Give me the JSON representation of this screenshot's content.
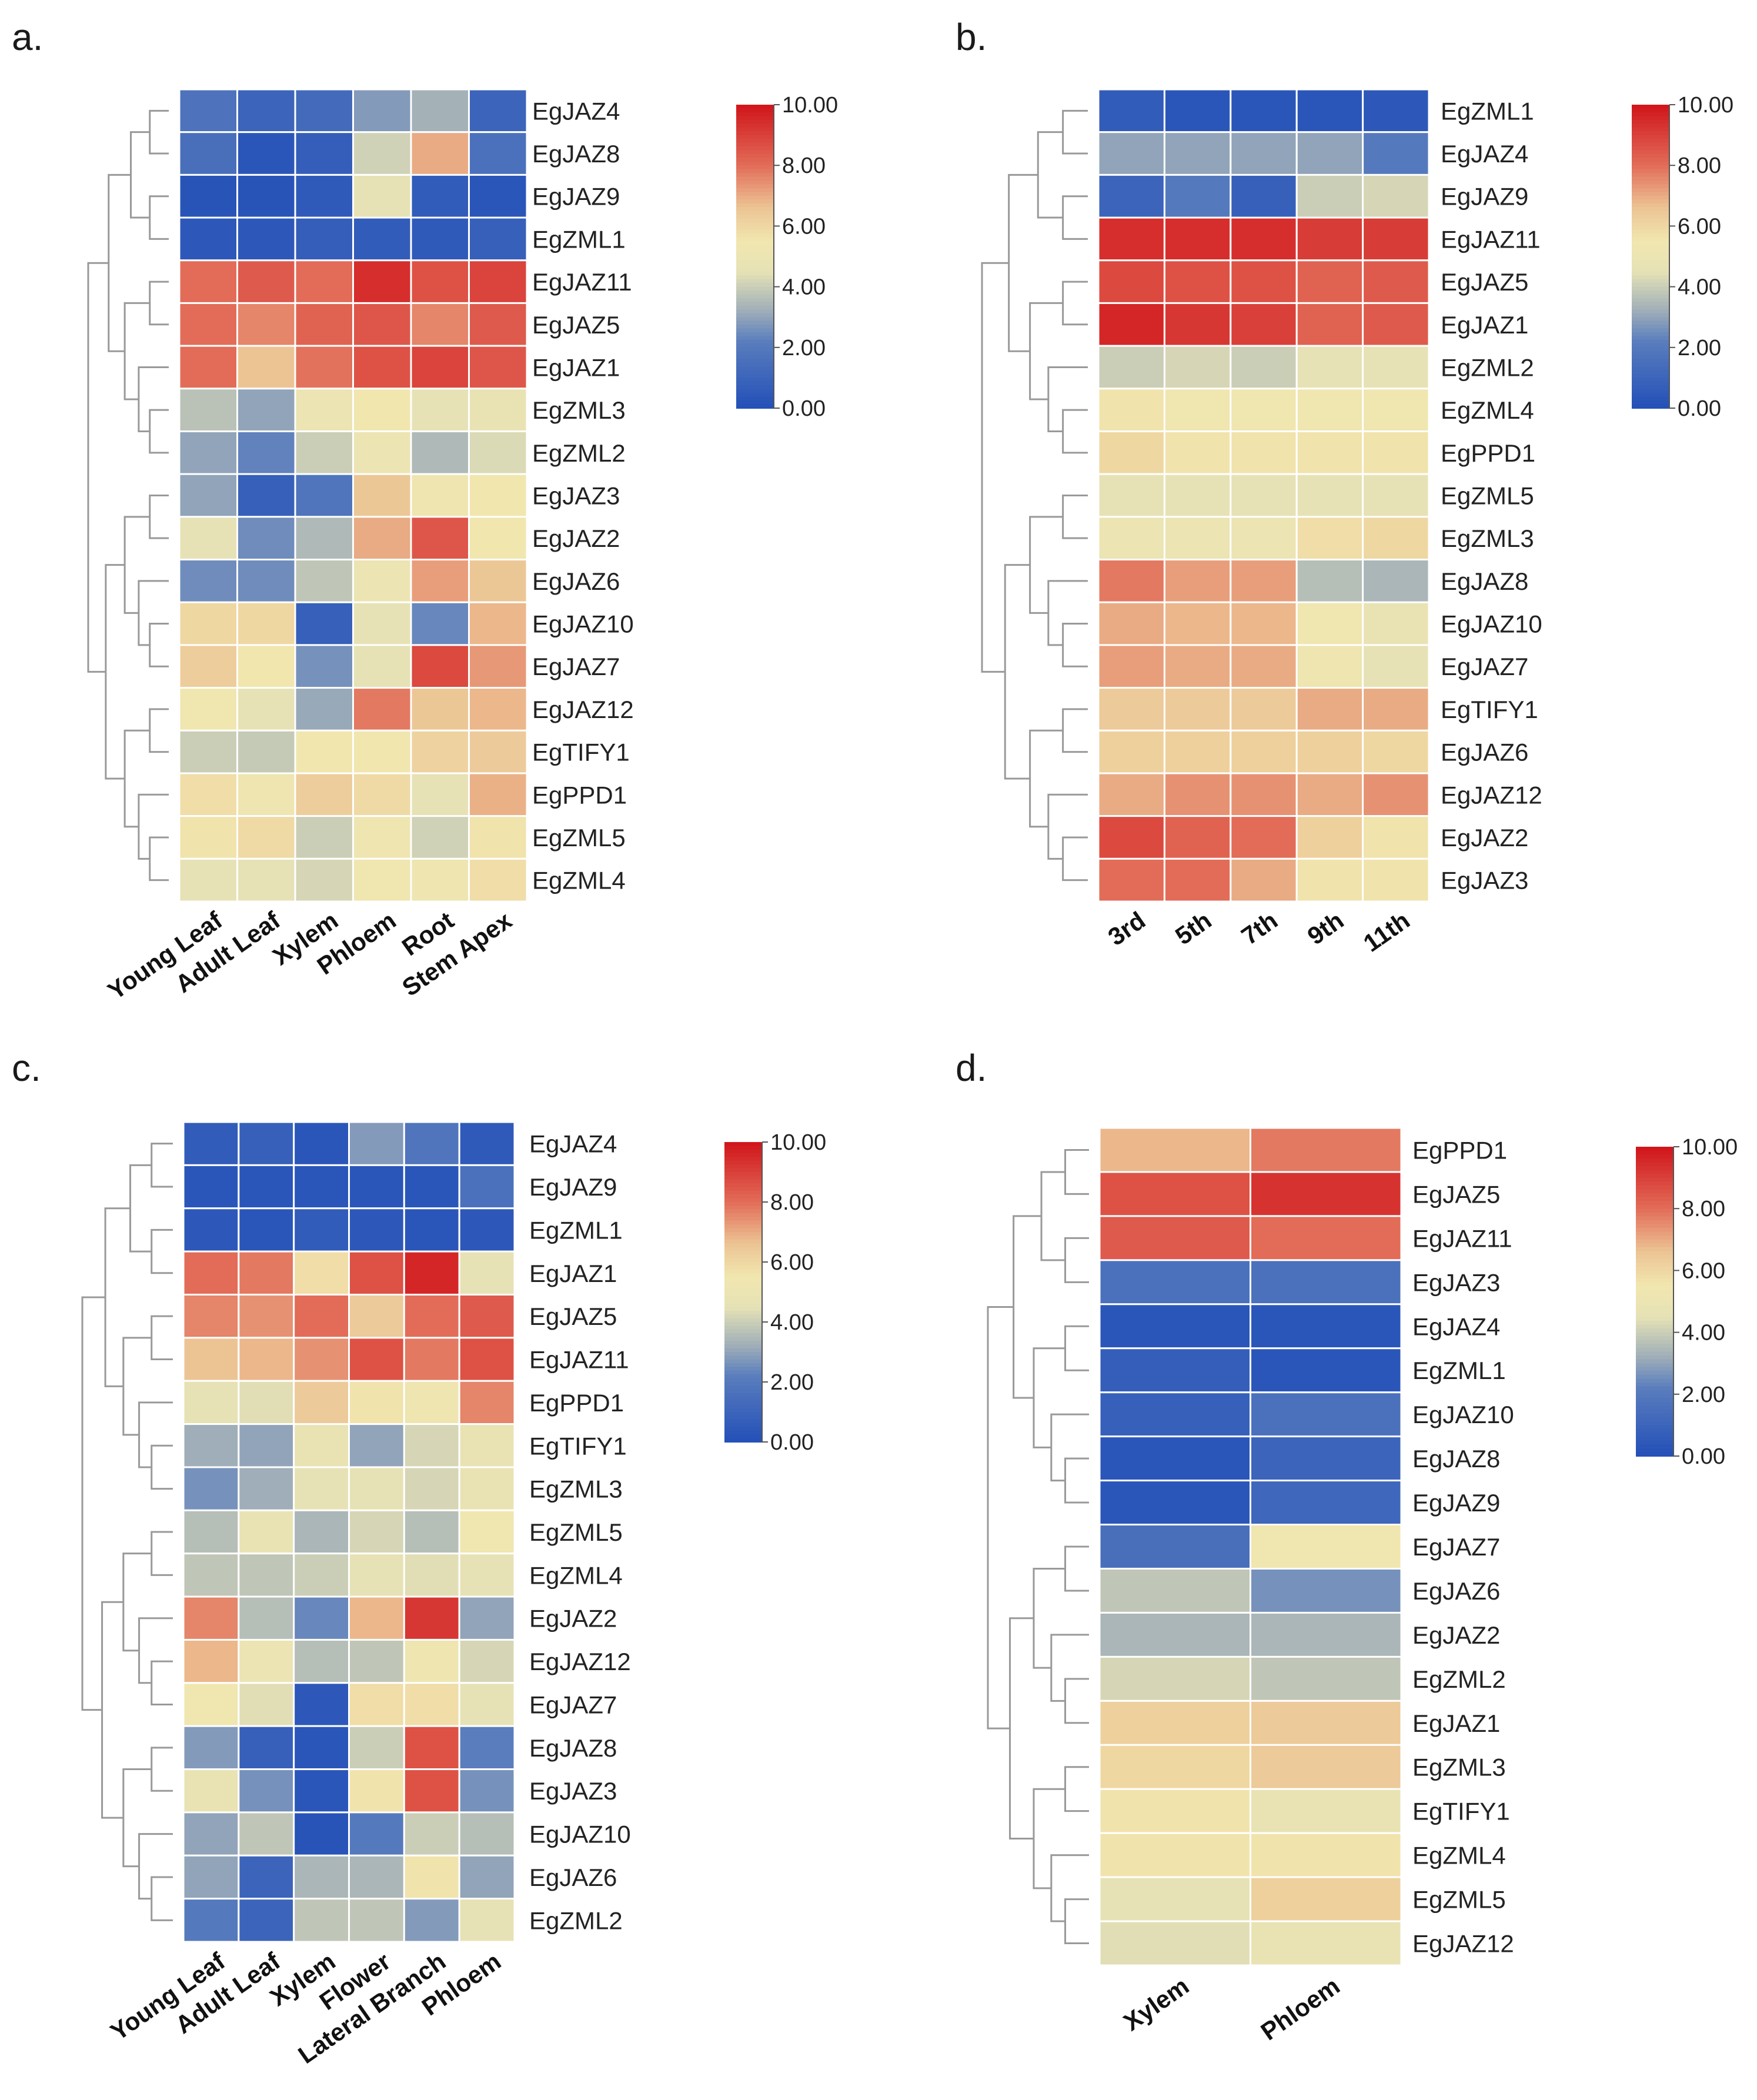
{
  "colors": {
    "low": "#2350b8",
    "mid": "#f1e6ae",
    "high": "#d0141a",
    "dendrogram": "#999999",
    "grid": "#ffffff"
  },
  "chart_data": [
    {
      "type": "heatmap",
      "panel_label": "a.",
      "rows": [
        "EgJAZ4",
        "EgJAZ8",
        "EgJAZ9",
        "EgZML1",
        "EgJAZ11",
        "EgJAZ5",
        "EgJAZ1",
        "EgZML3",
        "EgZML2",
        "EgJAZ3",
        "EgJAZ2",
        "EgJAZ6",
        "EgJAZ10",
        "EgJAZ7",
        "EgJAZ12",
        "EgTIFY1",
        "EgPPD1",
        "EgZML5",
        "EgZML4"
      ],
      "columns": [
        "Young Leaf",
        "Adult Leaf",
        "Xylem",
        "Phloem",
        "Root",
        "Stem Apex"
      ],
      "values": [
        [
          1.7,
          1.0,
          1.3,
          2.8,
          3.3,
          1.0
        ],
        [
          1.5,
          0.3,
          0.7,
          4.1,
          7.0,
          1.6
        ],
        [
          0.2,
          0.2,
          0.5,
          4.6,
          0.6,
          0.3
        ],
        [
          0.4,
          0.4,
          0.7,
          0.6,
          0.5,
          0.8
        ],
        [
          8.0,
          8.4,
          8.0,
          9.4,
          8.6,
          8.9
        ],
        [
          8.0,
          7.6,
          8.2,
          8.5,
          7.6,
          8.4
        ],
        [
          8.0,
          6.6,
          7.9,
          8.6,
          8.9,
          8.5
        ],
        [
          3.7,
          3.0,
          5.0,
          5.5,
          4.5,
          4.8
        ],
        [
          3.0,
          2.3,
          4.0,
          5.0,
          3.5,
          4.3
        ],
        [
          3.0,
          0.8,
          1.8,
          6.5,
          5.3,
          5.5
        ],
        [
          4.5,
          2.5,
          3.5,
          7.0,
          8.5,
          5.5
        ],
        [
          2.5,
          2.5,
          3.8,
          5.0,
          7.2,
          6.5
        ],
        [
          6.0,
          6.0,
          0.8,
          4.6,
          2.4,
          6.8
        ],
        [
          6.3,
          5.5,
          2.6,
          4.5,
          8.8,
          7.3
        ],
        [
          5.4,
          4.6,
          3.1,
          7.8,
          6.5,
          6.8
        ],
        [
          4.0,
          3.9,
          5.5,
          5.5,
          6.1,
          6.4
        ],
        [
          5.8,
          5.2,
          6.3,
          5.9,
          4.5,
          6.9
        ],
        [
          5.6,
          5.9,
          4.0,
          5.3,
          4.1,
          5.6
        ],
        [
          4.6,
          4.6,
          4.2,
          5.4,
          5.2,
          5.8
        ]
      ],
      "scale": {
        "min": 0.0,
        "max": 10.0,
        "ticks": [
          "10.00",
          "8.00",
          "6.00",
          "4.00",
          "2.00",
          "0.00"
        ]
      }
    },
    {
      "type": "heatmap",
      "panel_label": "b.",
      "rows": [
        "EgZML1",
        "EgJAZ4",
        "EgJAZ9",
        "EgJAZ11",
        "EgJAZ5",
        "EgJAZ1",
        "EgZML2",
        "EgZML4",
        "EgPPD1",
        "EgZML5",
        "EgZML3",
        "EgJAZ8",
        "EgJAZ10",
        "EgJAZ7",
        "EgTIFY1",
        "EgJAZ6",
        "EgJAZ12",
        "EgJAZ2",
        "EgJAZ3"
      ],
      "columns": [
        "3rd",
        "5th",
        "7th",
        "9th",
        "11th"
      ],
      "values": [
        [
          0.6,
          0.3,
          0.3,
          0.3,
          0.4
        ],
        [
          3.0,
          3.0,
          3.0,
          3.0,
          2.0
        ],
        [
          1.0,
          2.0,
          0.8,
          4.0,
          4.2
        ],
        [
          9.4,
          9.4,
          9.4,
          9.1,
          9.1
        ],
        [
          8.8,
          8.6,
          8.6,
          8.2,
          8.4
        ],
        [
          9.6,
          9.2,
          9.0,
          8.2,
          8.4
        ],
        [
          4.0,
          4.2,
          4.0,
          4.6,
          4.6
        ],
        [
          5.6,
          5.4,
          5.4,
          5.4,
          5.4
        ],
        [
          6.0,
          5.6,
          5.6,
          5.6,
          5.6
        ],
        [
          4.6,
          4.6,
          4.6,
          4.6,
          4.6
        ],
        [
          5.0,
          5.0,
          5.0,
          5.8,
          6.0
        ],
        [
          7.8,
          7.2,
          7.2,
          3.6,
          3.4
        ],
        [
          7.0,
          6.8,
          6.8,
          5.4,
          4.8
        ],
        [
          7.2,
          7.0,
          7.0,
          5.2,
          4.6
        ],
        [
          6.4,
          6.4,
          6.4,
          7.0,
          7.0
        ],
        [
          6.2,
          6.2,
          6.2,
          6.2,
          6.0
        ],
        [
          7.0,
          7.4,
          7.4,
          7.0,
          7.4
        ],
        [
          8.8,
          8.2,
          8.0,
          6.2,
          5.6
        ],
        [
          8.0,
          8.0,
          7.0,
          5.6,
          5.6
        ]
      ],
      "scale": {
        "min": 0.0,
        "max": 10.0,
        "ticks": [
          "10.00",
          "8.00",
          "6.00",
          "4.00",
          "2.00",
          "0.00"
        ]
      }
    },
    {
      "type": "heatmap",
      "panel_label": "c.",
      "rows": [
        "EgJAZ4",
        "EgJAZ9",
        "EgZML1",
        "EgJAZ1",
        "EgJAZ5",
        "EgJAZ11",
        "EgPPD1",
        "EgTIFY1",
        "EgZML3",
        "EgZML5",
        "EgZML4",
        "EgJAZ2",
        "EgJAZ12",
        "EgJAZ7",
        "EgJAZ8",
        "EgJAZ3",
        "EgJAZ10",
        "EgJAZ6",
        "EgZML2"
      ],
      "columns": [
        "Young Leaf",
        "Adult Leaf",
        "Xylem",
        "Flower",
        "Lateral Branch",
        "Phloem"
      ],
      "values": [
        [
          0.6,
          0.8,
          0.3,
          2.8,
          1.8,
          0.5
        ],
        [
          0.3,
          0.3,
          0.3,
          0.3,
          0.3,
          1.6
        ],
        [
          0.4,
          0.3,
          0.6,
          0.4,
          0.3,
          0.4
        ],
        [
          8.0,
          7.8,
          5.8,
          8.6,
          9.6,
          4.6
        ],
        [
          7.6,
          7.4,
          8.0,
          6.4,
          8.0,
          8.4
        ],
        [
          6.6,
          6.8,
          7.4,
          8.6,
          7.8,
          8.6
        ],
        [
          4.6,
          4.4,
          6.4,
          5.6,
          5.2,
          7.6
        ],
        [
          3.2,
          3.0,
          4.8,
          3.0,
          4.2,
          4.8
        ],
        [
          2.6,
          3.2,
          4.6,
          4.6,
          4.2,
          4.8
        ],
        [
          3.6,
          4.8,
          3.4,
          4.2,
          3.6,
          5.4
        ],
        [
          3.8,
          3.8,
          4.0,
          4.6,
          4.4,
          4.6
        ],
        [
          7.6,
          3.6,
          2.4,
          6.8,
          9.2,
          3.0
        ],
        [
          6.8,
          5.0,
          3.6,
          3.8,
          5.2,
          4.2
        ],
        [
          5.4,
          4.4,
          0.4,
          5.8,
          5.8,
          4.6
        ],
        [
          2.8,
          0.8,
          0.3,
          4.0,
          8.6,
          2.2
        ],
        [
          4.8,
          2.6,
          0.3,
          5.6,
          8.6,
          2.6
        ],
        [
          3.0,
          3.8,
          0.2,
          2.0,
          4.0,
          3.6
        ],
        [
          3.0,
          1.0,
          3.4,
          3.4,
          5.6,
          3.0
        ],
        [
          2.0,
          1.0,
          3.8,
          3.8,
          2.8,
          4.6
        ]
      ],
      "scale": {
        "min": 0.0,
        "max": 10.0,
        "ticks": [
          "10.00",
          "8.00",
          "6.00",
          "4.00",
          "2.00",
          "0.00"
        ]
      }
    },
    {
      "type": "heatmap",
      "panel_label": "d.",
      "rows": [
        "EgPPD1",
        "EgJAZ5",
        "EgJAZ11",
        "EgJAZ3",
        "EgJAZ4",
        "EgZML1",
        "EgJAZ10",
        "EgJAZ8",
        "EgJAZ9",
        "EgJAZ7",
        "EgJAZ6",
        "EgJAZ2",
        "EgZML2",
        "EgJAZ1",
        "EgZML3",
        "EgTIFY1",
        "EgZML4",
        "EgZML5",
        "EgJAZ12"
      ],
      "columns": [
        "Xylem",
        "Phloem"
      ],
      "values": [
        [
          6.8,
          7.8
        ],
        [
          8.6,
          9.3
        ],
        [
          8.4,
          8.0
        ],
        [
          1.6,
          1.6
        ],
        [
          0.3,
          0.3
        ],
        [
          0.7,
          0.3
        ],
        [
          0.8,
          1.6
        ],
        [
          0.3,
          1.0
        ],
        [
          0.3,
          1.1
        ],
        [
          1.5,
          5.4
        ],
        [
          3.8,
          2.6
        ],
        [
          3.4,
          3.4
        ],
        [
          4.2,
          3.8
        ],
        [
          6.2,
          6.4
        ],
        [
          6.0,
          6.4
        ],
        [
          5.6,
          4.8
        ],
        [
          5.6,
          5.6
        ],
        [
          4.6,
          6.2
        ],
        [
          4.4,
          4.8
        ]
      ],
      "scale": {
        "min": 0.0,
        "max": 10.0,
        "ticks": [
          "10.00",
          "8.00",
          "6.00",
          "4.00",
          "2.00",
          "0.00"
        ]
      }
    }
  ]
}
